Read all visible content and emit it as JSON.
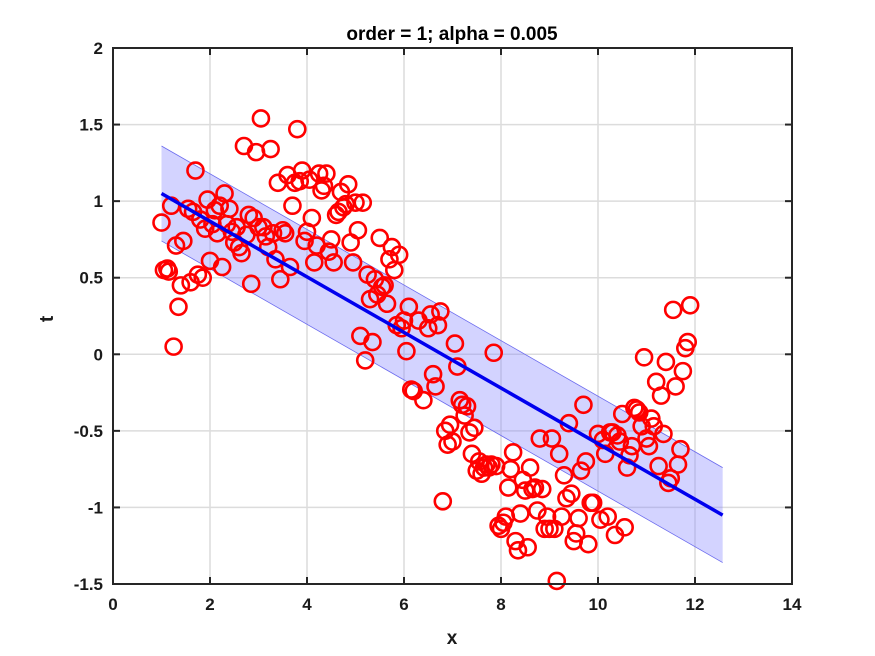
{
  "chart_data": {
    "type": "scatter",
    "title": "order = 1; alpha = 0.005",
    "xlabel": "x",
    "ylabel": "t",
    "xlim": [
      0,
      14
    ],
    "ylim": [
      -1.5,
      2
    ],
    "xticks": [
      0,
      2,
      4,
      6,
      8,
      10,
      12,
      14
    ],
    "yticks": [
      -1.5,
      -1,
      -0.5,
      0,
      0.5,
      1,
      1.5,
      2
    ],
    "xtick_labels": [
      "0",
      "2",
      "4",
      "6",
      "8",
      "10",
      "12",
      "14"
    ],
    "ytick_labels": [
      "-1.5",
      "-1",
      "-0.5",
      "0",
      "0.5",
      "1",
      "1.5",
      "2"
    ],
    "grid": true,
    "fit_line": {
      "x": [
        1.0,
        12.57
      ],
      "y": [
        1.05,
        -1.05
      ],
      "color": "#0000ee"
    },
    "confidence_band": {
      "x": [
        1.0,
        12.57
      ],
      "upper": [
        1.36,
        -0.74
      ],
      "lower": [
        0.74,
        -1.36
      ],
      "color": "#8080ff"
    },
    "points_color": "#ff0000",
    "points": [
      {
        "x": 1.0,
        "y": 0.86
      },
      {
        "x": 1.05,
        "y": 0.55
      },
      {
        "x": 1.12,
        "y": 0.56
      },
      {
        "x": 1.15,
        "y": 0.54
      },
      {
        "x": 1.2,
        "y": 0.97
      },
      {
        "x": 1.25,
        "y": 0.05
      },
      {
        "x": 1.3,
        "y": 0.71
      },
      {
        "x": 1.35,
        "y": 0.31
      },
      {
        "x": 1.4,
        "y": 0.45
      },
      {
        "x": 1.45,
        "y": 0.74
      },
      {
        "x": 1.55,
        "y": 0.95
      },
      {
        "x": 1.6,
        "y": 0.47
      },
      {
        "x": 1.65,
        "y": 0.93
      },
      {
        "x": 1.7,
        "y": 1.2
      },
      {
        "x": 1.75,
        "y": 0.52
      },
      {
        "x": 1.8,
        "y": 0.88
      },
      {
        "x": 1.85,
        "y": 0.5
      },
      {
        "x": 1.9,
        "y": 0.82
      },
      {
        "x": 1.95,
        "y": 1.01
      },
      {
        "x": 2.0,
        "y": 0.61
      },
      {
        "x": 2.05,
        "y": 0.85
      },
      {
        "x": 2.1,
        "y": 0.94
      },
      {
        "x": 2.15,
        "y": 0.79
      },
      {
        "x": 2.2,
        "y": 0.97
      },
      {
        "x": 2.25,
        "y": 0.57
      },
      {
        "x": 2.3,
        "y": 1.05
      },
      {
        "x": 2.35,
        "y": 0.85
      },
      {
        "x": 2.4,
        "y": 0.95
      },
      {
        "x": 2.45,
        "y": 0.8
      },
      {
        "x": 2.5,
        "y": 0.73
      },
      {
        "x": 2.55,
        "y": 0.83
      },
      {
        "x": 2.6,
        "y": 0.7
      },
      {
        "x": 2.65,
        "y": 0.66
      },
      {
        "x": 2.7,
        "y": 1.36
      },
      {
        "x": 2.75,
        "y": 0.78
      },
      {
        "x": 2.8,
        "y": 0.91
      },
      {
        "x": 2.85,
        "y": 0.46
      },
      {
        "x": 2.9,
        "y": 0.89
      },
      {
        "x": 2.95,
        "y": 1.32
      },
      {
        "x": 3.0,
        "y": 0.83
      },
      {
        "x": 3.05,
        "y": 1.54
      },
      {
        "x": 3.1,
        "y": 0.83
      },
      {
        "x": 3.15,
        "y": 0.77
      },
      {
        "x": 3.2,
        "y": 0.7
      },
      {
        "x": 3.25,
        "y": 1.34
      },
      {
        "x": 3.3,
        "y": 0.79
      },
      {
        "x": 3.35,
        "y": 0.62
      },
      {
        "x": 3.4,
        "y": 1.12
      },
      {
        "x": 3.45,
        "y": 0.49
      },
      {
        "x": 3.5,
        "y": 0.81
      },
      {
        "x": 3.55,
        "y": 0.79
      },
      {
        "x": 3.6,
        "y": 1.17
      },
      {
        "x": 3.65,
        "y": 0.57
      },
      {
        "x": 3.7,
        "y": 0.97
      },
      {
        "x": 3.75,
        "y": 1.12
      },
      {
        "x": 3.8,
        "y": 1.47
      },
      {
        "x": 3.85,
        "y": 1.13
      },
      {
        "x": 3.9,
        "y": 1.2
      },
      {
        "x": 3.95,
        "y": 0.74
      },
      {
        "x": 4.0,
        "y": 0.8
      },
      {
        "x": 4.05,
        "y": 1.14
      },
      {
        "x": 4.1,
        "y": 0.89
      },
      {
        "x": 4.15,
        "y": 0.6
      },
      {
        "x": 4.2,
        "y": 0.71
      },
      {
        "x": 4.25,
        "y": 1.18
      },
      {
        "x": 4.3,
        "y": 1.07
      },
      {
        "x": 4.35,
        "y": 1.1
      },
      {
        "x": 4.4,
        "y": 1.18
      },
      {
        "x": 4.45,
        "y": 0.67
      },
      {
        "x": 4.5,
        "y": 0.75
      },
      {
        "x": 4.55,
        "y": 0.6
      },
      {
        "x": 4.6,
        "y": 0.91
      },
      {
        "x": 4.65,
        "y": 0.93
      },
      {
        "x": 4.7,
        "y": 1.06
      },
      {
        "x": 4.75,
        "y": 0.96
      },
      {
        "x": 4.8,
        "y": 0.98
      },
      {
        "x": 4.85,
        "y": 1.11
      },
      {
        "x": 4.9,
        "y": 0.73
      },
      {
        "x": 4.95,
        "y": 0.6
      },
      {
        "x": 5.0,
        "y": 0.99
      },
      {
        "x": 5.05,
        "y": 0.81
      },
      {
        "x": 5.1,
        "y": 0.12
      },
      {
        "x": 5.15,
        "y": 0.99
      },
      {
        "x": 5.2,
        "y": -0.04
      },
      {
        "x": 5.25,
        "y": 0.52
      },
      {
        "x": 5.3,
        "y": 0.36
      },
      {
        "x": 5.35,
        "y": 0.08
      },
      {
        "x": 5.4,
        "y": 0.49
      },
      {
        "x": 5.45,
        "y": 0.39
      },
      {
        "x": 5.5,
        "y": 0.76
      },
      {
        "x": 5.55,
        "y": 0.44
      },
      {
        "x": 5.6,
        "y": 0.45
      },
      {
        "x": 5.65,
        "y": 0.33
      },
      {
        "x": 5.7,
        "y": 0.62
      },
      {
        "x": 5.75,
        "y": 0.7
      },
      {
        "x": 5.8,
        "y": 0.55
      },
      {
        "x": 5.85,
        "y": 0.19
      },
      {
        "x": 5.9,
        "y": 0.65
      },
      {
        "x": 5.95,
        "y": 0.17
      },
      {
        "x": 6.0,
        "y": 0.22
      },
      {
        "x": 6.05,
        "y": 0.02
      },
      {
        "x": 6.1,
        "y": 0.31
      },
      {
        "x": 6.15,
        "y": -0.23
      },
      {
        "x": 6.2,
        "y": -0.24
      },
      {
        "x": 6.3,
        "y": 0.22
      },
      {
        "x": 6.4,
        "y": -0.3
      },
      {
        "x": 6.5,
        "y": 0.17
      },
      {
        "x": 6.55,
        "y": 0.26
      },
      {
        "x": 6.6,
        "y": -0.13
      },
      {
        "x": 6.65,
        "y": -0.21
      },
      {
        "x": 6.7,
        "y": 0.19
      },
      {
        "x": 6.75,
        "y": 0.28
      },
      {
        "x": 6.8,
        "y": -0.96
      },
      {
        "x": 6.85,
        "y": -0.5
      },
      {
        "x": 6.9,
        "y": -0.59
      },
      {
        "x": 6.95,
        "y": -0.46
      },
      {
        "x": 7.0,
        "y": -0.57
      },
      {
        "x": 7.05,
        "y": 0.07
      },
      {
        "x": 7.1,
        "y": -0.08
      },
      {
        "x": 7.15,
        "y": -0.3
      },
      {
        "x": 7.2,
        "y": -0.33
      },
      {
        "x": 7.25,
        "y": -0.4
      },
      {
        "x": 7.3,
        "y": -0.34
      },
      {
        "x": 7.35,
        "y": -0.51
      },
      {
        "x": 7.4,
        "y": -0.65
      },
      {
        "x": 7.45,
        "y": -0.48
      },
      {
        "x": 7.5,
        "y": -0.76
      },
      {
        "x": 7.55,
        "y": -0.7
      },
      {
        "x": 7.6,
        "y": -0.78
      },
      {
        "x": 7.65,
        "y": -0.74
      },
      {
        "x": 7.7,
        "y": -0.72
      },
      {
        "x": 7.75,
        "y": -0.74
      },
      {
        "x": 7.8,
        "y": -0.72
      },
      {
        "x": 7.85,
        "y": 0.01
      },
      {
        "x": 7.9,
        "y": -0.73
      },
      {
        "x": 7.95,
        "y": -1.12
      },
      {
        "x": 8.0,
        "y": -1.14
      },
      {
        "x": 8.05,
        "y": -1.1
      },
      {
        "x": 8.1,
        "y": -1.06
      },
      {
        "x": 8.15,
        "y": -0.87
      },
      {
        "x": 8.2,
        "y": -0.75
      },
      {
        "x": 8.25,
        "y": -0.64
      },
      {
        "x": 8.3,
        "y": -1.22
      },
      {
        "x": 8.35,
        "y": -1.28
      },
      {
        "x": 8.4,
        "y": -1.04
      },
      {
        "x": 8.45,
        "y": -0.82
      },
      {
        "x": 8.5,
        "y": -0.89
      },
      {
        "x": 8.55,
        "y": -1.26
      },
      {
        "x": 8.6,
        "y": -0.74
      },
      {
        "x": 8.65,
        "y": -0.88
      },
      {
        "x": 8.7,
        "y": -0.87
      },
      {
        "x": 8.75,
        "y": -1.02
      },
      {
        "x": 8.8,
        "y": -0.55
      },
      {
        "x": 8.85,
        "y": -0.88
      },
      {
        "x": 8.9,
        "y": -1.14
      },
      {
        "x": 8.95,
        "y": -1.06
      },
      {
        "x": 9.0,
        "y": -1.14
      },
      {
        "x": 9.05,
        "y": -0.55
      },
      {
        "x": 9.1,
        "y": -1.14
      },
      {
        "x": 9.15,
        "y": -1.48
      },
      {
        "x": 9.2,
        "y": -0.65
      },
      {
        "x": 9.25,
        "y": -1.06
      },
      {
        "x": 9.3,
        "y": -0.79
      },
      {
        "x": 9.35,
        "y": -0.94
      },
      {
        "x": 9.4,
        "y": -0.45
      },
      {
        "x": 9.45,
        "y": -0.91
      },
      {
        "x": 9.5,
        "y": -1.22
      },
      {
        "x": 9.55,
        "y": -1.17
      },
      {
        "x": 9.6,
        "y": -1.07
      },
      {
        "x": 9.65,
        "y": -0.76
      },
      {
        "x": 9.7,
        "y": -0.33
      },
      {
        "x": 9.75,
        "y": -0.7
      },
      {
        "x": 9.8,
        "y": -1.24
      },
      {
        "x": 9.85,
        "y": -0.97
      },
      {
        "x": 9.9,
        "y": -0.97
      },
      {
        "x": 10.0,
        "y": -0.52
      },
      {
        "x": 10.05,
        "y": -1.08
      },
      {
        "x": 10.1,
        "y": -0.56
      },
      {
        "x": 10.15,
        "y": -0.65
      },
      {
        "x": 10.2,
        "y": -1.06
      },
      {
        "x": 10.25,
        "y": -0.51
      },
      {
        "x": 10.3,
        "y": -0.51
      },
      {
        "x": 10.35,
        "y": -1.18
      },
      {
        "x": 10.4,
        "y": -0.53
      },
      {
        "x": 10.45,
        "y": -0.57
      },
      {
        "x": 10.5,
        "y": -0.39
      },
      {
        "x": 10.55,
        "y": -1.13
      },
      {
        "x": 10.6,
        "y": -0.74
      },
      {
        "x": 10.65,
        "y": -0.66
      },
      {
        "x": 10.7,
        "y": -0.6
      },
      {
        "x": 10.75,
        "y": -0.35
      },
      {
        "x": 10.8,
        "y": -0.36
      },
      {
        "x": 10.85,
        "y": -0.38
      },
      {
        "x": 10.9,
        "y": -0.47
      },
      {
        "x": 10.95,
        "y": -0.02
      },
      {
        "x": 11.0,
        "y": -0.55
      },
      {
        "x": 11.05,
        "y": -0.6
      },
      {
        "x": 11.1,
        "y": -0.42
      },
      {
        "x": 11.15,
        "y": -0.47
      },
      {
        "x": 11.2,
        "y": -0.18
      },
      {
        "x": 11.25,
        "y": -0.73
      },
      {
        "x": 11.3,
        "y": -0.27
      },
      {
        "x": 11.35,
        "y": -0.52
      },
      {
        "x": 11.4,
        "y": -0.05
      },
      {
        "x": 11.45,
        "y": -0.84
      },
      {
        "x": 11.5,
        "y": -0.81
      },
      {
        "x": 11.55,
        "y": 0.29
      },
      {
        "x": 11.6,
        "y": -0.21
      },
      {
        "x": 11.65,
        "y": -0.72
      },
      {
        "x": 11.7,
        "y": -0.62
      },
      {
        "x": 11.75,
        "y": -0.11
      },
      {
        "x": 11.8,
        "y": 0.04
      },
      {
        "x": 11.85,
        "y": 0.08
      },
      {
        "x": 11.9,
        "y": 0.32
      }
    ]
  }
}
